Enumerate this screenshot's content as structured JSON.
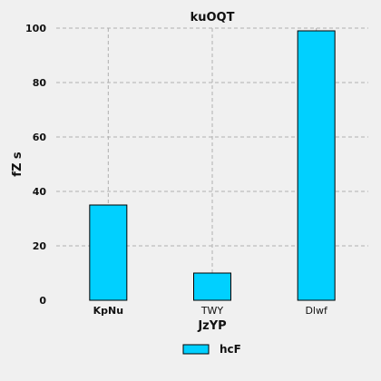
{
  "chart_data": {
    "type": "bar",
    "title": "kuOQT",
    "xlabel": "JzYP",
    "ylabel": "fZ s",
    "categories": [
      "KpNu",
      "TWY",
      "Dlwf"
    ],
    "series": [
      {
        "name": "hcF",
        "values": [
          35,
          10,
          99
        ],
        "color": "#00d0ff"
      }
    ],
    "ylim": [
      0,
      100
    ],
    "yticks": [
      0,
      20,
      40,
      60,
      80,
      100
    ],
    "grid": true,
    "legend_position": "bottom-center"
  }
}
